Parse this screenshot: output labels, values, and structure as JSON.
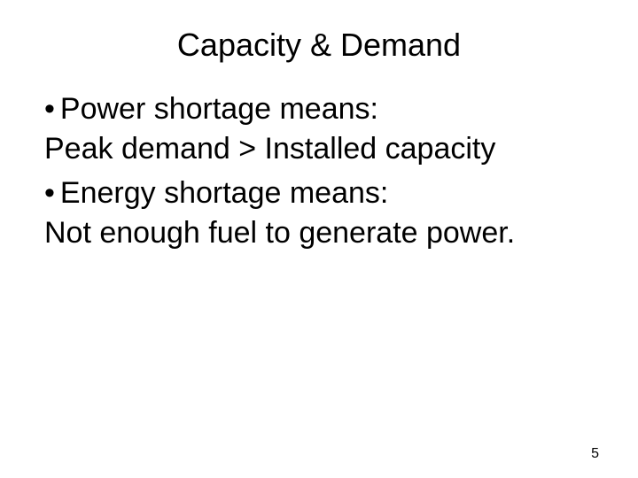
{
  "slide": {
    "title": "Capacity & Demand",
    "bullet1": "Power shortage means:",
    "line1": "Peak demand > Installed capacity",
    "bullet2": "Energy shortage means:",
    "line2": "Not enough fuel to generate power.",
    "pageNumber": "5"
  },
  "style": {
    "background_color": "#ffffff",
    "text_color": "#000000",
    "title_fontsize": 36,
    "body_fontsize": 34,
    "pagenum_fontsize": 16,
    "font_family": "Arial"
  }
}
